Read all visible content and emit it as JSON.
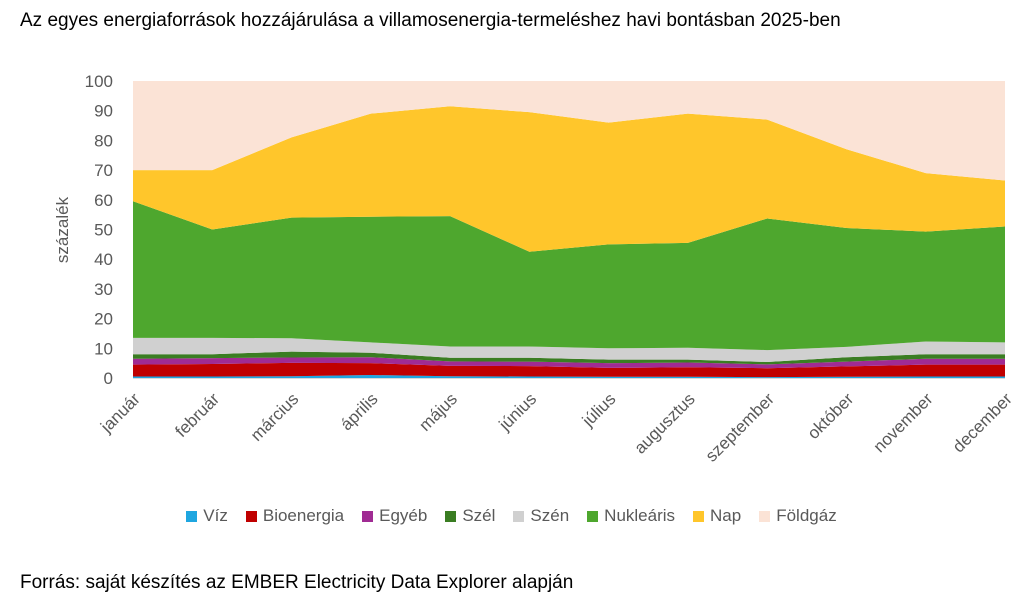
{
  "chart_data": {
    "type": "area",
    "stacked": true,
    "title": "Az egyes energiaforrások hozzájárulása a villamosenergia-termeléshez havi bontásban 2025-ben",
    "ylabel": "százalék",
    "xlabel": "",
    "ylim": [
      0,
      100
    ],
    "yticks": [
      0,
      10,
      20,
      30,
      40,
      50,
      60,
      70,
      80,
      90,
      100
    ],
    "grid": false,
    "legend": "bottom",
    "categories": [
      "január",
      "február",
      "március",
      "április",
      "május",
      "június",
      "július",
      "augusztus",
      "szeptember",
      "október",
      "november",
      "december"
    ],
    "series": [
      {
        "name": "Víz",
        "color": "#1fa6e0",
        "values": [
          0.5,
          0.5,
          0.6,
          1.0,
          0.6,
          0.5,
          0.4,
          0.4,
          0.3,
          0.4,
          0.5,
          0.5
        ]
      },
      {
        "name": "Bioenergia",
        "color": "#c00000",
        "values": [
          4,
          4.2,
          4.5,
          4,
          3.5,
          3.5,
          3,
          3.2,
          3,
          3.5,
          4,
          4
        ]
      },
      {
        "name": "Egyéb",
        "color": "#a02b93",
        "values": [
          2,
          2,
          1.8,
          2,
          1.5,
          1.5,
          1.6,
          1.6,
          1.3,
          1.6,
          2,
          2
        ]
      },
      {
        "name": "Szél",
        "color": "#3a7d22",
        "values": [
          1.5,
          1.3,
          2,
          1.5,
          1.2,
          1.3,
          1.2,
          1,
          0.8,
          1.5,
          1.5,
          1.5
        ]
      },
      {
        "name": "Szén",
        "color": "#d0d0d0",
        "values": [
          5.5,
          5.5,
          4.5,
          3.5,
          3.8,
          3.8,
          3.8,
          4,
          4,
          3.5,
          4.3,
          4
        ]
      },
      {
        "name": "Nukleáris",
        "color": "#4ea72e",
        "values": [
          46,
          36.5,
          40.6,
          42.3,
          43.9,
          31.9,
          35,
          35.3,
          44.3,
          40,
          37,
          39
        ]
      },
      {
        "name": "Nap",
        "color": "#ffc62b",
        "values": [
          10.5,
          20,
          27,
          34.7,
          37,
          47,
          41,
          43.5,
          33.3,
          26.5,
          19.7,
          15.5
        ]
      },
      {
        "name": "Földgáz",
        "color": "#fbe3d6",
        "values": [
          30,
          30,
          19,
          11,
          8.5,
          10.5,
          14,
          11,
          13,
          23,
          31,
          33.5
        ]
      }
    ]
  },
  "source": "Forrás: saját készítés az EMBER Electricity Data Explorer alapján"
}
